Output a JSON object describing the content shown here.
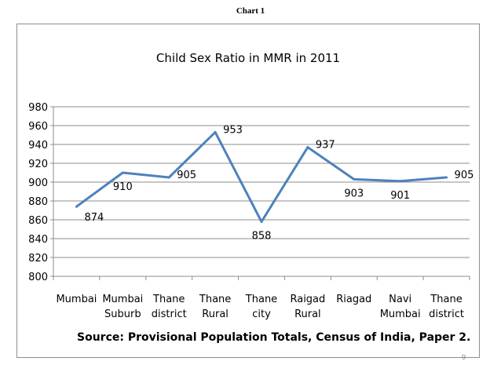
{
  "page": {
    "header": "Chart 1",
    "page_number": "9"
  },
  "chart_data": {
    "type": "line",
    "title": "Child Sex Ratio in MMR in 2011",
    "source": "Source: Provisional Population Totals, Census of India, Paper 2.",
    "categories": [
      [
        "Mumbai"
      ],
      [
        "Mumbai",
        "Suburb"
      ],
      [
        "Thane",
        "district"
      ],
      [
        "Thane",
        "Rural"
      ],
      [
        "Thane",
        "city"
      ],
      [
        "Raigad",
        "Rural"
      ],
      [
        "Riagad"
      ],
      [
        "Navi",
        "Mumbai"
      ],
      [
        "Thane",
        "district"
      ]
    ],
    "series": [
      {
        "values": [
          874,
          910,
          905,
          953,
          858,
          937,
          903,
          901,
          905
        ]
      }
    ],
    "data_label_position": [
      "below-right",
      "below",
      "right",
      "right",
      "below",
      "right",
      "below",
      "below",
      "right"
    ],
    "ylim": [
      800,
      980
    ],
    "yticks": [
      800,
      820,
      840,
      860,
      880,
      900,
      920,
      940,
      960,
      980
    ],
    "grid": true,
    "legend": "none",
    "line_color": "#4f81bd",
    "grid_color": "#8e8e8e"
  }
}
